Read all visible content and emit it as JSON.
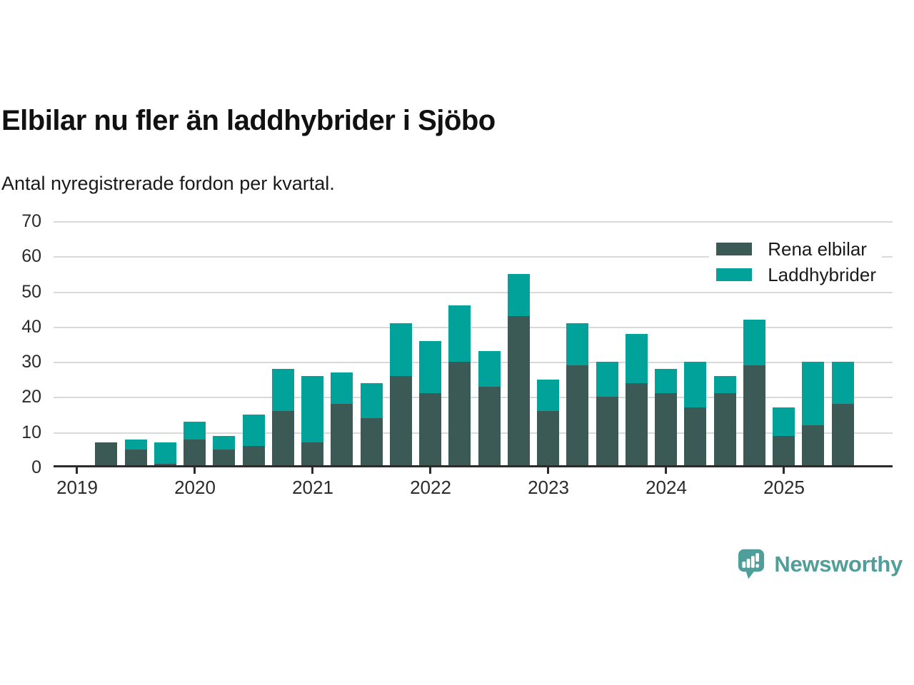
{
  "header": {
    "title": "Elbilar nu fler än laddhybrider i Sjöbo",
    "subtitle": "Antal nyregistrerade fordon per kvartal."
  },
  "legend": {
    "items": [
      {
        "label": "Rena elbilar",
        "color": "#3b5a55"
      },
      {
        "label": "Laddhybrider",
        "color": "#00a299"
      }
    ]
  },
  "footer": {
    "brand": "Newsworthy",
    "color": "#4f9e9a"
  },
  "chart_data": {
    "type": "bar",
    "stacked": true,
    "title": "Elbilar nu fler än laddhybrider i Sjöbo",
    "subtitle": "Antal nyregistrerade fordon per kvartal.",
    "xlabel": "",
    "ylabel": "",
    "ylim": [
      0,
      70
    ],
    "yticks": [
      0,
      10,
      20,
      30,
      40,
      50,
      60,
      70
    ],
    "grid": true,
    "legend_position": "top-right",
    "x_year_ticks": [
      2019,
      2020,
      2021,
      2022,
      2023,
      2024,
      2025
    ],
    "quarters": [
      "2019 Q1",
      "2019 Q2",
      "2019 Q3",
      "2019 Q4",
      "2020 Q1",
      "2020 Q2",
      "2020 Q3",
      "2020 Q4",
      "2021 Q1",
      "2021 Q2",
      "2021 Q3",
      "2021 Q4",
      "2022 Q1",
      "2022 Q2",
      "2022 Q3",
      "2022 Q4",
      "2023 Q1",
      "2023 Q2",
      "2023 Q3",
      "2023 Q4",
      "2024 Q1",
      "2024 Q2",
      "2024 Q3",
      "2024 Q4",
      "2025 Q1",
      "2025 Q2",
      "2025 Q3"
    ],
    "series": [
      {
        "name": "Rena elbilar",
        "color": "#3b5a55",
        "values": [
          0,
          7,
          5,
          1,
          8,
          5,
          6,
          16,
          7,
          18,
          14,
          26,
          21,
          30,
          23,
          43,
          16,
          29,
          20,
          24,
          21,
          17,
          21,
          29,
          9,
          12,
          18
        ]
      },
      {
        "name": "Laddhybrider",
        "color": "#00a299",
        "values": [
          0,
          0,
          3,
          6,
          5,
          4,
          9,
          12,
          19,
          9,
          10,
          15,
          15,
          16,
          10,
          12,
          9,
          12,
          10,
          14,
          7,
          13,
          5,
          13,
          8,
          18,
          12
        ]
      }
    ],
    "totals": [
      0,
      7,
      8,
      7,
      13,
      9,
      15,
      28,
      26,
      27,
      24,
      41,
      36,
      46,
      33,
      55,
      25,
      41,
      30,
      38,
      28,
      30,
      26,
      42,
      17,
      30,
      30
    ]
  }
}
